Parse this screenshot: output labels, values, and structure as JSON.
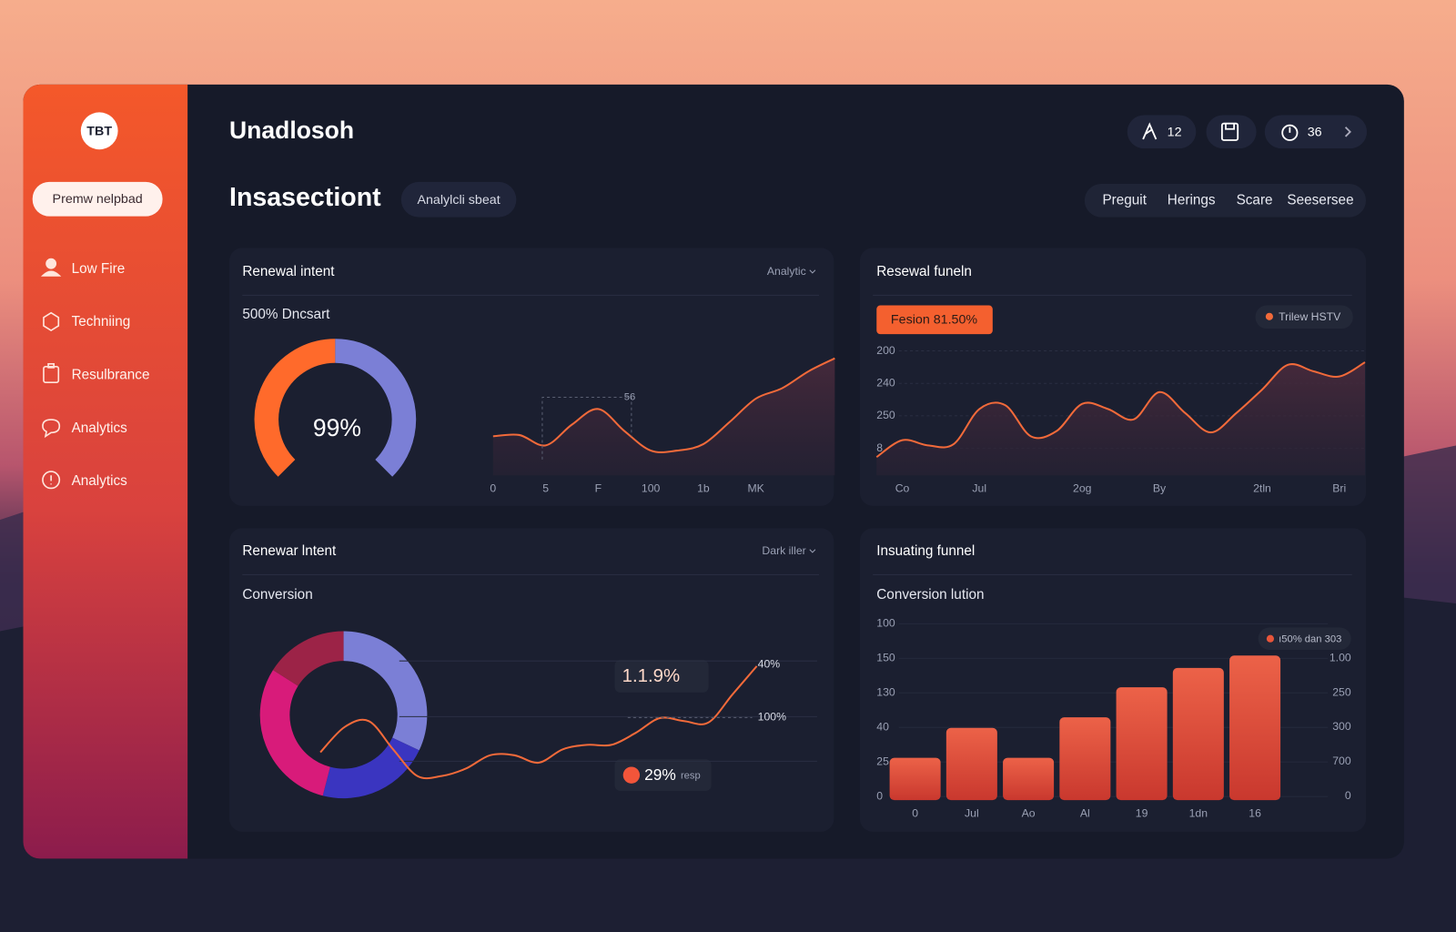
{
  "sidebar": {
    "logo": "TBT",
    "button": "Premw nelpbad",
    "nav": [
      "Low Fire",
      "Techniing",
      "Resulbrance",
      "Analytics",
      "Analytics"
    ]
  },
  "header": {
    "title": "Unadlosoh",
    "counts": [
      12,
      36
    ]
  },
  "section": {
    "title": "Insasectiont",
    "badge": "Analylcli sbeat",
    "tabs": [
      "Preguit",
      "Herings",
      "Scare",
      "Seesersee"
    ]
  },
  "chart_data": [
    {
      "type": "gauge",
      "title": "Renewal intent",
      "menu": "Analytic",
      "subtitle": "500% Dncsart",
      "center_label": "99%",
      "values": [
        50,
        50
      ],
      "colors": [
        "#ff6a2b",
        "#7b7fd6"
      ]
    },
    {
      "type": "area",
      "categories": [
        "0",
        null,
        "5",
        null,
        "F",
        null,
        "100",
        null,
        "1b",
        null,
        "MK",
        null,
        null,
        null
      ],
      "values": [
        30,
        31,
        23,
        39,
        51,
        34,
        19,
        19,
        24,
        41,
        59,
        67,
        80,
        90
      ],
      "ylim": [
        0,
        100
      ],
      "color": "#f26a3a",
      "annotation": "56"
    },
    {
      "type": "area",
      "title": "Resewal funeln",
      "badge": "Fesion 81.50%",
      "categories": [
        null,
        "Co",
        null,
        null,
        "Jul",
        null,
        null,
        null,
        "2og",
        null,
        null,
        "By",
        null,
        null,
        null,
        "2tln",
        null,
        null,
        "Bri",
        null
      ],
      "series": [
        {
          "name": "Trilew HSTV",
          "color": "#f26a3a",
          "values": [
            14,
            27,
            23,
            24,
            51,
            54,
            30,
            34,
            55,
            51,
            43,
            64,
            48,
            33,
            48,
            66,
            85,
            80,
            76,
            87
          ]
        }
      ],
      "y_labels": [
        "200",
        "240",
        "250",
        "8"
      ],
      "ylim": [
        0,
        100
      ],
      "grid": true
    },
    {
      "type": "donut",
      "title": "Renewar lntent",
      "menu": "Dark iller",
      "subtitle": "Conversion",
      "values": [
        32,
        22,
        30,
        16
      ],
      "colors": [
        "#7b7fd6",
        "#3a35c0",
        "#d81b7a",
        "#9c2347"
      ]
    },
    {
      "type": "line",
      "values": [
        31,
        48,
        52,
        33,
        15,
        15,
        20,
        29,
        29,
        24,
        33,
        36,
        36,
        44,
        54,
        52,
        51,
        70,
        89
      ],
      "ylim": [
        0,
        100
      ],
      "color": "#f26a3a",
      "callout": "1.1.9%",
      "right_labels": [
        "40%",
        "100%"
      ],
      "legend": {
        "value_label": "29%",
        "name": "resp",
        "color": "#f2553a"
      },
      "grid": true
    },
    {
      "type": "bar",
      "title": "Insuating funnel",
      "subtitle": "Conversion lution",
      "categories": [
        "0",
        "Jul",
        "Ao",
        "Al",
        "19",
        "1dn",
        "16"
      ],
      "values": [
        24,
        41,
        24,
        47,
        64,
        75,
        82
      ],
      "ylim": [
        0,
        100
      ],
      "color": "#e8553a",
      "y_labels": [
        "100",
        "150",
        "130",
        "40",
        "25",
        "0"
      ],
      "y2_labels": [
        "1.00",
        "250",
        "300",
        "700",
        "0"
      ],
      "legend": {
        "name": "ı50% dan 303",
        "color": "#e8553a"
      },
      "grid": true
    }
  ]
}
